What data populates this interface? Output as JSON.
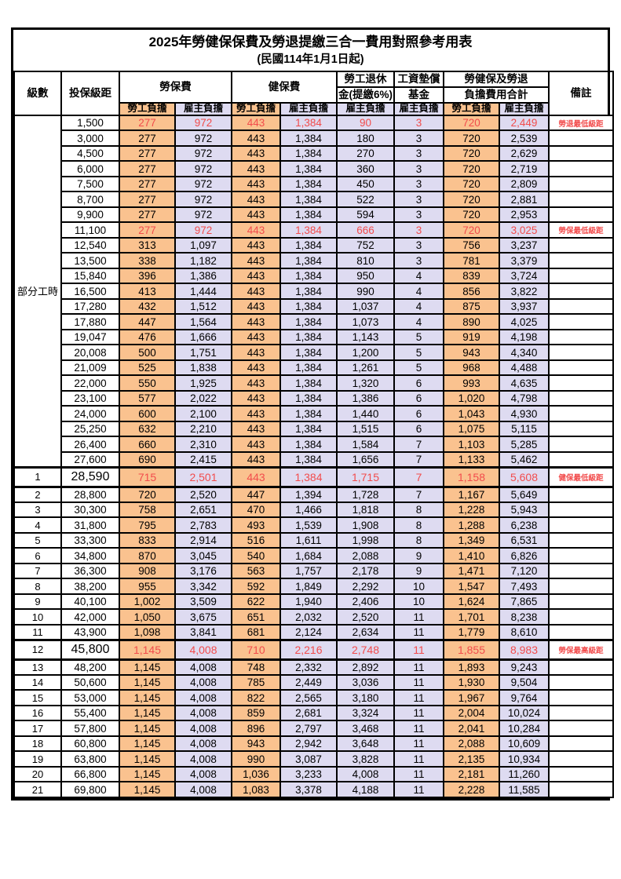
{
  "page": {
    "title": "2025年勞健保保費及勞退提繳三合一費用對照參考用表",
    "subtitle": "(民國114年1月1日起)"
  },
  "colors": {
    "employee_bg": "#FAC28F",
    "employer_bg": "#DEDBF1",
    "highlight_text": "#F24C4C"
  },
  "table": {
    "headers": {
      "level": "級數",
      "bracket": "投保級距",
      "labor_insurance": "勞保費",
      "health_insurance": "健保費",
      "pension_line1": "勞工退休",
      "pension_line2": "金(提繳6%)",
      "wage_fund_line1": "工資墊償",
      "wage_fund_line2": "基金",
      "total_line1": "勞健保及勞退",
      "total_line2": "負擔費用合計",
      "remark": "備註",
      "employee_burden": "勞工負擔",
      "employer_burden": "雇主負擔"
    },
    "group_label": "部分工時",
    "group_rowspan": 23,
    "rows": [
      {
        "level": "",
        "bracket": "1,500",
        "labor_emp": "277",
        "labor_er": "972",
        "health_emp": "443",
        "health_er": "1,384",
        "pension_er": "90",
        "fund_er": "3",
        "total_emp": "720",
        "total_er": "2,449",
        "remark": "勞退最低級距",
        "highlight": true
      },
      {
        "level": "",
        "bracket": "3,000",
        "labor_emp": "277",
        "labor_er": "972",
        "health_emp": "443",
        "health_er": "1,384",
        "pension_er": "180",
        "fund_er": "3",
        "total_emp": "720",
        "total_er": "2,539",
        "remark": ""
      },
      {
        "level": "",
        "bracket": "4,500",
        "labor_emp": "277",
        "labor_er": "972",
        "health_emp": "443",
        "health_er": "1,384",
        "pension_er": "270",
        "fund_er": "3",
        "total_emp": "720",
        "total_er": "2,629",
        "remark": ""
      },
      {
        "level": "",
        "bracket": "6,000",
        "labor_emp": "277",
        "labor_er": "972",
        "health_emp": "443",
        "health_er": "1,384",
        "pension_er": "360",
        "fund_er": "3",
        "total_emp": "720",
        "total_er": "2,719",
        "remark": ""
      },
      {
        "level": "",
        "bracket": "7,500",
        "labor_emp": "277",
        "labor_er": "972",
        "health_emp": "443",
        "health_er": "1,384",
        "pension_er": "450",
        "fund_er": "3",
        "total_emp": "720",
        "total_er": "2,809",
        "remark": ""
      },
      {
        "level": "",
        "bracket": "8,700",
        "labor_emp": "277",
        "labor_er": "972",
        "health_emp": "443",
        "health_er": "1,384",
        "pension_er": "522",
        "fund_er": "3",
        "total_emp": "720",
        "total_er": "2,881",
        "remark": ""
      },
      {
        "level": "",
        "bracket": "9,900",
        "labor_emp": "277",
        "labor_er": "972",
        "health_emp": "443",
        "health_er": "1,384",
        "pension_er": "594",
        "fund_er": "3",
        "total_emp": "720",
        "total_er": "2,953",
        "remark": ""
      },
      {
        "level": "",
        "bracket": "11,100",
        "labor_emp": "277",
        "labor_er": "972",
        "health_emp": "443",
        "health_er": "1,384",
        "pension_er": "666",
        "fund_er": "3",
        "total_emp": "720",
        "total_er": "3,025",
        "remark": "勞保最低級距",
        "highlight": true
      },
      {
        "level": "",
        "bracket": "12,540",
        "labor_emp": "313",
        "labor_er": "1,097",
        "health_emp": "443",
        "health_er": "1,384",
        "pension_er": "752",
        "fund_er": "3",
        "total_emp": "756",
        "total_er": "3,237",
        "remark": ""
      },
      {
        "level": "",
        "bracket": "13,500",
        "labor_emp": "338",
        "labor_er": "1,182",
        "health_emp": "443",
        "health_er": "1,384",
        "pension_er": "810",
        "fund_er": "3",
        "total_emp": "781",
        "total_er": "3,379",
        "remark": ""
      },
      {
        "level": "",
        "bracket": "15,840",
        "labor_emp": "396",
        "labor_er": "1,386",
        "health_emp": "443",
        "health_er": "1,384",
        "pension_er": "950",
        "fund_er": "4",
        "total_emp": "839",
        "total_er": "3,724",
        "remark": ""
      },
      {
        "level": "",
        "bracket": "16,500",
        "labor_emp": "413",
        "labor_er": "1,444",
        "health_emp": "443",
        "health_er": "1,384",
        "pension_er": "990",
        "fund_er": "4",
        "total_emp": "856",
        "total_er": "3,822",
        "remark": ""
      },
      {
        "level": "",
        "bracket": "17,280",
        "labor_emp": "432",
        "labor_er": "1,512",
        "health_emp": "443",
        "health_er": "1,384",
        "pension_er": "1,037",
        "fund_er": "4",
        "total_emp": "875",
        "total_er": "3,937",
        "remark": ""
      },
      {
        "level": "",
        "bracket": "17,880",
        "labor_emp": "447",
        "labor_er": "1,564",
        "health_emp": "443",
        "health_er": "1,384",
        "pension_er": "1,073",
        "fund_er": "4",
        "total_emp": "890",
        "total_er": "4,025",
        "remark": ""
      },
      {
        "level": "",
        "bracket": "19,047",
        "labor_emp": "476",
        "labor_er": "1,666",
        "health_emp": "443",
        "health_er": "1,384",
        "pension_er": "1,143",
        "fund_er": "5",
        "total_emp": "919",
        "total_er": "4,198",
        "remark": ""
      },
      {
        "level": "",
        "bracket": "20,008",
        "labor_emp": "500",
        "labor_er": "1,751",
        "health_emp": "443",
        "health_er": "1,384",
        "pension_er": "1,200",
        "fund_er": "5",
        "total_emp": "943",
        "total_er": "4,340",
        "remark": ""
      },
      {
        "level": "",
        "bracket": "21,009",
        "labor_emp": "525",
        "labor_er": "1,838",
        "health_emp": "443",
        "health_er": "1,384",
        "pension_er": "1,261",
        "fund_er": "5",
        "total_emp": "968",
        "total_er": "4,488",
        "remark": ""
      },
      {
        "level": "",
        "bracket": "22,000",
        "labor_emp": "550",
        "labor_er": "1,925",
        "health_emp": "443",
        "health_er": "1,384",
        "pension_er": "1,320",
        "fund_er": "6",
        "total_emp": "993",
        "total_er": "4,635",
        "remark": ""
      },
      {
        "level": "",
        "bracket": "23,100",
        "labor_emp": "577",
        "labor_er": "2,022",
        "health_emp": "443",
        "health_er": "1,384",
        "pension_er": "1,386",
        "fund_er": "6",
        "total_emp": "1,020",
        "total_er": "4,798",
        "remark": ""
      },
      {
        "level": "",
        "bracket": "24,000",
        "labor_emp": "600",
        "labor_er": "2,100",
        "health_emp": "443",
        "health_er": "1,384",
        "pension_er": "1,440",
        "fund_er": "6",
        "total_emp": "1,043",
        "total_er": "4,930",
        "remark": ""
      },
      {
        "level": "",
        "bracket": "25,250",
        "labor_emp": "632",
        "labor_er": "2,210",
        "health_emp": "443",
        "health_er": "1,384",
        "pension_er": "1,515",
        "fund_er": "6",
        "total_emp": "1,075",
        "total_er": "5,115",
        "remark": ""
      },
      {
        "level": "",
        "bracket": "26,400",
        "labor_emp": "660",
        "labor_er": "2,310",
        "health_emp": "443",
        "health_er": "1,384",
        "pension_er": "1,584",
        "fund_er": "7",
        "total_emp": "1,103",
        "total_er": "5,285",
        "remark": ""
      },
      {
        "level": "",
        "bracket": "27,600",
        "labor_emp": "690",
        "labor_er": "2,415",
        "health_emp": "443",
        "health_er": "1,384",
        "pension_er": "1,656",
        "fund_er": "7",
        "total_emp": "1,133",
        "total_er": "5,462",
        "remark": ""
      },
      {
        "level": "1",
        "bracket": "28,590",
        "labor_emp": "715",
        "labor_er": "2,501",
        "health_emp": "443",
        "health_er": "1,384",
        "pension_er": "1,715",
        "fund_er": "7",
        "total_emp": "1,158",
        "total_er": "5,608",
        "remark": "健保最低級距",
        "highlight": true,
        "big": true
      },
      {
        "level": "2",
        "bracket": "28,800",
        "labor_emp": "720",
        "labor_er": "2,520",
        "health_emp": "447",
        "health_er": "1,394",
        "pension_er": "1,728",
        "fund_er": "7",
        "total_emp": "1,167",
        "total_er": "5,649",
        "remark": ""
      },
      {
        "level": "3",
        "bracket": "30,300",
        "labor_emp": "758",
        "labor_er": "2,651",
        "health_emp": "470",
        "health_er": "1,466",
        "pension_er": "1,818",
        "fund_er": "8",
        "total_emp": "1,228",
        "total_er": "5,943",
        "remark": ""
      },
      {
        "level": "4",
        "bracket": "31,800",
        "labor_emp": "795",
        "labor_er": "2,783",
        "health_emp": "493",
        "health_er": "1,539",
        "pension_er": "1,908",
        "fund_er": "8",
        "total_emp": "1,288",
        "total_er": "6,238",
        "remark": ""
      },
      {
        "level": "5",
        "bracket": "33,300",
        "labor_emp": "833",
        "labor_er": "2,914",
        "health_emp": "516",
        "health_er": "1,611",
        "pension_er": "1,998",
        "fund_er": "8",
        "total_emp": "1,349",
        "total_er": "6,531",
        "remark": ""
      },
      {
        "level": "6",
        "bracket": "34,800",
        "labor_emp": "870",
        "labor_er": "3,045",
        "health_emp": "540",
        "health_er": "1,684",
        "pension_er": "2,088",
        "fund_er": "9",
        "total_emp": "1,410",
        "total_er": "6,826",
        "remark": ""
      },
      {
        "level": "7",
        "bracket": "36,300",
        "labor_emp": "908",
        "labor_er": "3,176",
        "health_emp": "563",
        "health_er": "1,757",
        "pension_er": "2,178",
        "fund_er": "9",
        "total_emp": "1,471",
        "total_er": "7,120",
        "remark": ""
      },
      {
        "level": "8",
        "bracket": "38,200",
        "labor_emp": "955",
        "labor_er": "3,342",
        "health_emp": "592",
        "health_er": "1,849",
        "pension_er": "2,292",
        "fund_er": "10",
        "total_emp": "1,547",
        "total_er": "7,493",
        "remark": ""
      },
      {
        "level": "9",
        "bracket": "40,100",
        "labor_emp": "1,002",
        "labor_er": "3,509",
        "health_emp": "622",
        "health_er": "1,940",
        "pension_er": "2,406",
        "fund_er": "10",
        "total_emp": "1,624",
        "total_er": "7,865",
        "remark": ""
      },
      {
        "level": "10",
        "bracket": "42,000",
        "labor_emp": "1,050",
        "labor_er": "3,675",
        "health_emp": "651",
        "health_er": "2,032",
        "pension_er": "2,520",
        "fund_er": "11",
        "total_emp": "1,701",
        "total_er": "8,238",
        "remark": ""
      },
      {
        "level": "11",
        "bracket": "43,900",
        "labor_emp": "1,098",
        "labor_er": "3,841",
        "health_emp": "681",
        "health_er": "2,124",
        "pension_er": "2,634",
        "fund_er": "11",
        "total_emp": "1,779",
        "total_er": "8,610",
        "remark": ""
      },
      {
        "level": "12",
        "bracket": "45,800",
        "labor_emp": "1,145",
        "labor_er": "4,008",
        "health_emp": "710",
        "health_er": "2,216",
        "pension_er": "2,748",
        "fund_er": "11",
        "total_emp": "1,855",
        "total_er": "8,983",
        "remark": "勞保最高級距",
        "highlight": true,
        "big": true
      },
      {
        "level": "13",
        "bracket": "48,200",
        "labor_emp": "1,145",
        "labor_er": "4,008",
        "health_emp": "748",
        "health_er": "2,332",
        "pension_er": "2,892",
        "fund_er": "11",
        "total_emp": "1,893",
        "total_er": "9,243",
        "remark": ""
      },
      {
        "level": "14",
        "bracket": "50,600",
        "labor_emp": "1,145",
        "labor_er": "4,008",
        "health_emp": "785",
        "health_er": "2,449",
        "pension_er": "3,036",
        "fund_er": "11",
        "total_emp": "1,930",
        "total_er": "9,504",
        "remark": ""
      },
      {
        "level": "15",
        "bracket": "53,000",
        "labor_emp": "1,145",
        "labor_er": "4,008",
        "health_emp": "822",
        "health_er": "2,565",
        "pension_er": "3,180",
        "fund_er": "11",
        "total_emp": "1,967",
        "total_er": "9,764",
        "remark": ""
      },
      {
        "level": "16",
        "bracket": "55,400",
        "labor_emp": "1,145",
        "labor_er": "4,008",
        "health_emp": "859",
        "health_er": "2,681",
        "pension_er": "3,324",
        "fund_er": "11",
        "total_emp": "2,004",
        "total_er": "10,024",
        "remark": ""
      },
      {
        "level": "17",
        "bracket": "57,800",
        "labor_emp": "1,145",
        "labor_er": "4,008",
        "health_emp": "896",
        "health_er": "2,797",
        "pension_er": "3,468",
        "fund_er": "11",
        "total_emp": "2,041",
        "total_er": "10,284",
        "remark": ""
      },
      {
        "level": "18",
        "bracket": "60,800",
        "labor_emp": "1,145",
        "labor_er": "4,008",
        "health_emp": "943",
        "health_er": "2,942",
        "pension_er": "3,648",
        "fund_er": "11",
        "total_emp": "2,088",
        "total_er": "10,609",
        "remark": ""
      },
      {
        "level": "19",
        "bracket": "63,800",
        "labor_emp": "1,145",
        "labor_er": "4,008",
        "health_emp": "990",
        "health_er": "3,087",
        "pension_er": "3,828",
        "fund_er": "11",
        "total_emp": "2,135",
        "total_er": "10,934",
        "remark": ""
      },
      {
        "level": "20",
        "bracket": "66,800",
        "labor_emp": "1,145",
        "labor_er": "4,008",
        "health_emp": "1,036",
        "health_er": "3,233",
        "pension_er": "4,008",
        "fund_er": "11",
        "total_emp": "2,181",
        "total_er": "11,260",
        "remark": ""
      },
      {
        "level": "21",
        "bracket": "69,800",
        "labor_emp": "1,145",
        "labor_er": "4,008",
        "health_emp": "1,083",
        "health_er": "3,378",
        "pension_er": "4,188",
        "fund_er": "11",
        "total_emp": "2,228",
        "total_er": "11,585",
        "remark": ""
      }
    ]
  }
}
